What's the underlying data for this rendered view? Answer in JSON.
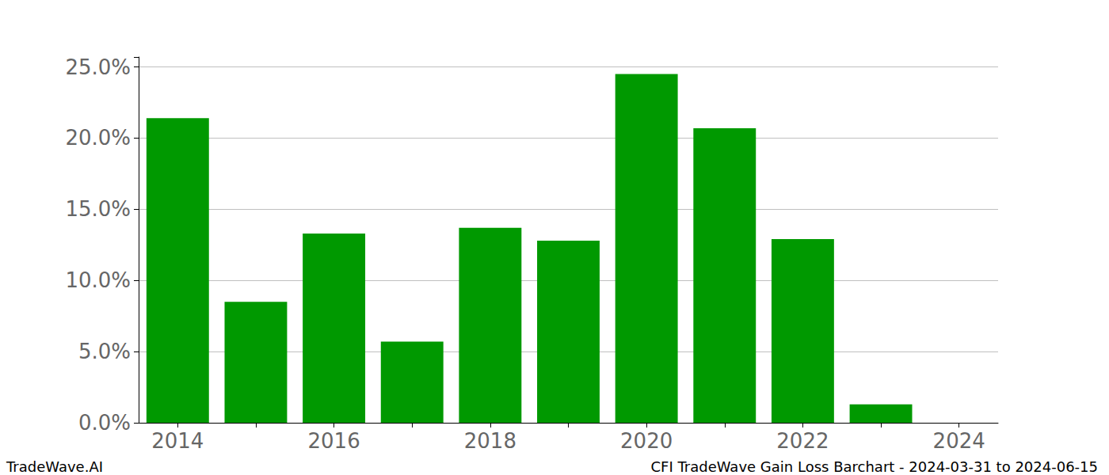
{
  "chart_data": {
    "type": "bar",
    "categories": [
      "2014",
      null,
      "2016",
      null,
      "2018",
      null,
      "2020",
      null,
      "2022",
      null,
      "2024"
    ],
    "values": [
      21.4,
      8.5,
      13.3,
      5.7,
      13.7,
      12.8,
      24.5,
      20.7,
      12.9,
      1.3,
      null
    ],
    "color": "#009900",
    "ylim": [
      0,
      25.7
    ],
    "yticks": [
      {
        "value": 0,
        "label": "0.0%"
      },
      {
        "value": 5,
        "label": "5.0%"
      },
      {
        "value": 10,
        "label": "10.0%"
      },
      {
        "value": 15,
        "label": "15.0%"
      },
      {
        "value": 20,
        "label": "20.0%"
      },
      {
        "value": 25,
        "label": "25.0%"
      }
    ],
    "grid": true,
    "annotations": [
      "TradeWave.AI",
      "CFI TradeWave Gain Loss Barchart - 2024-03-31 to 2024-06-15"
    ]
  }
}
